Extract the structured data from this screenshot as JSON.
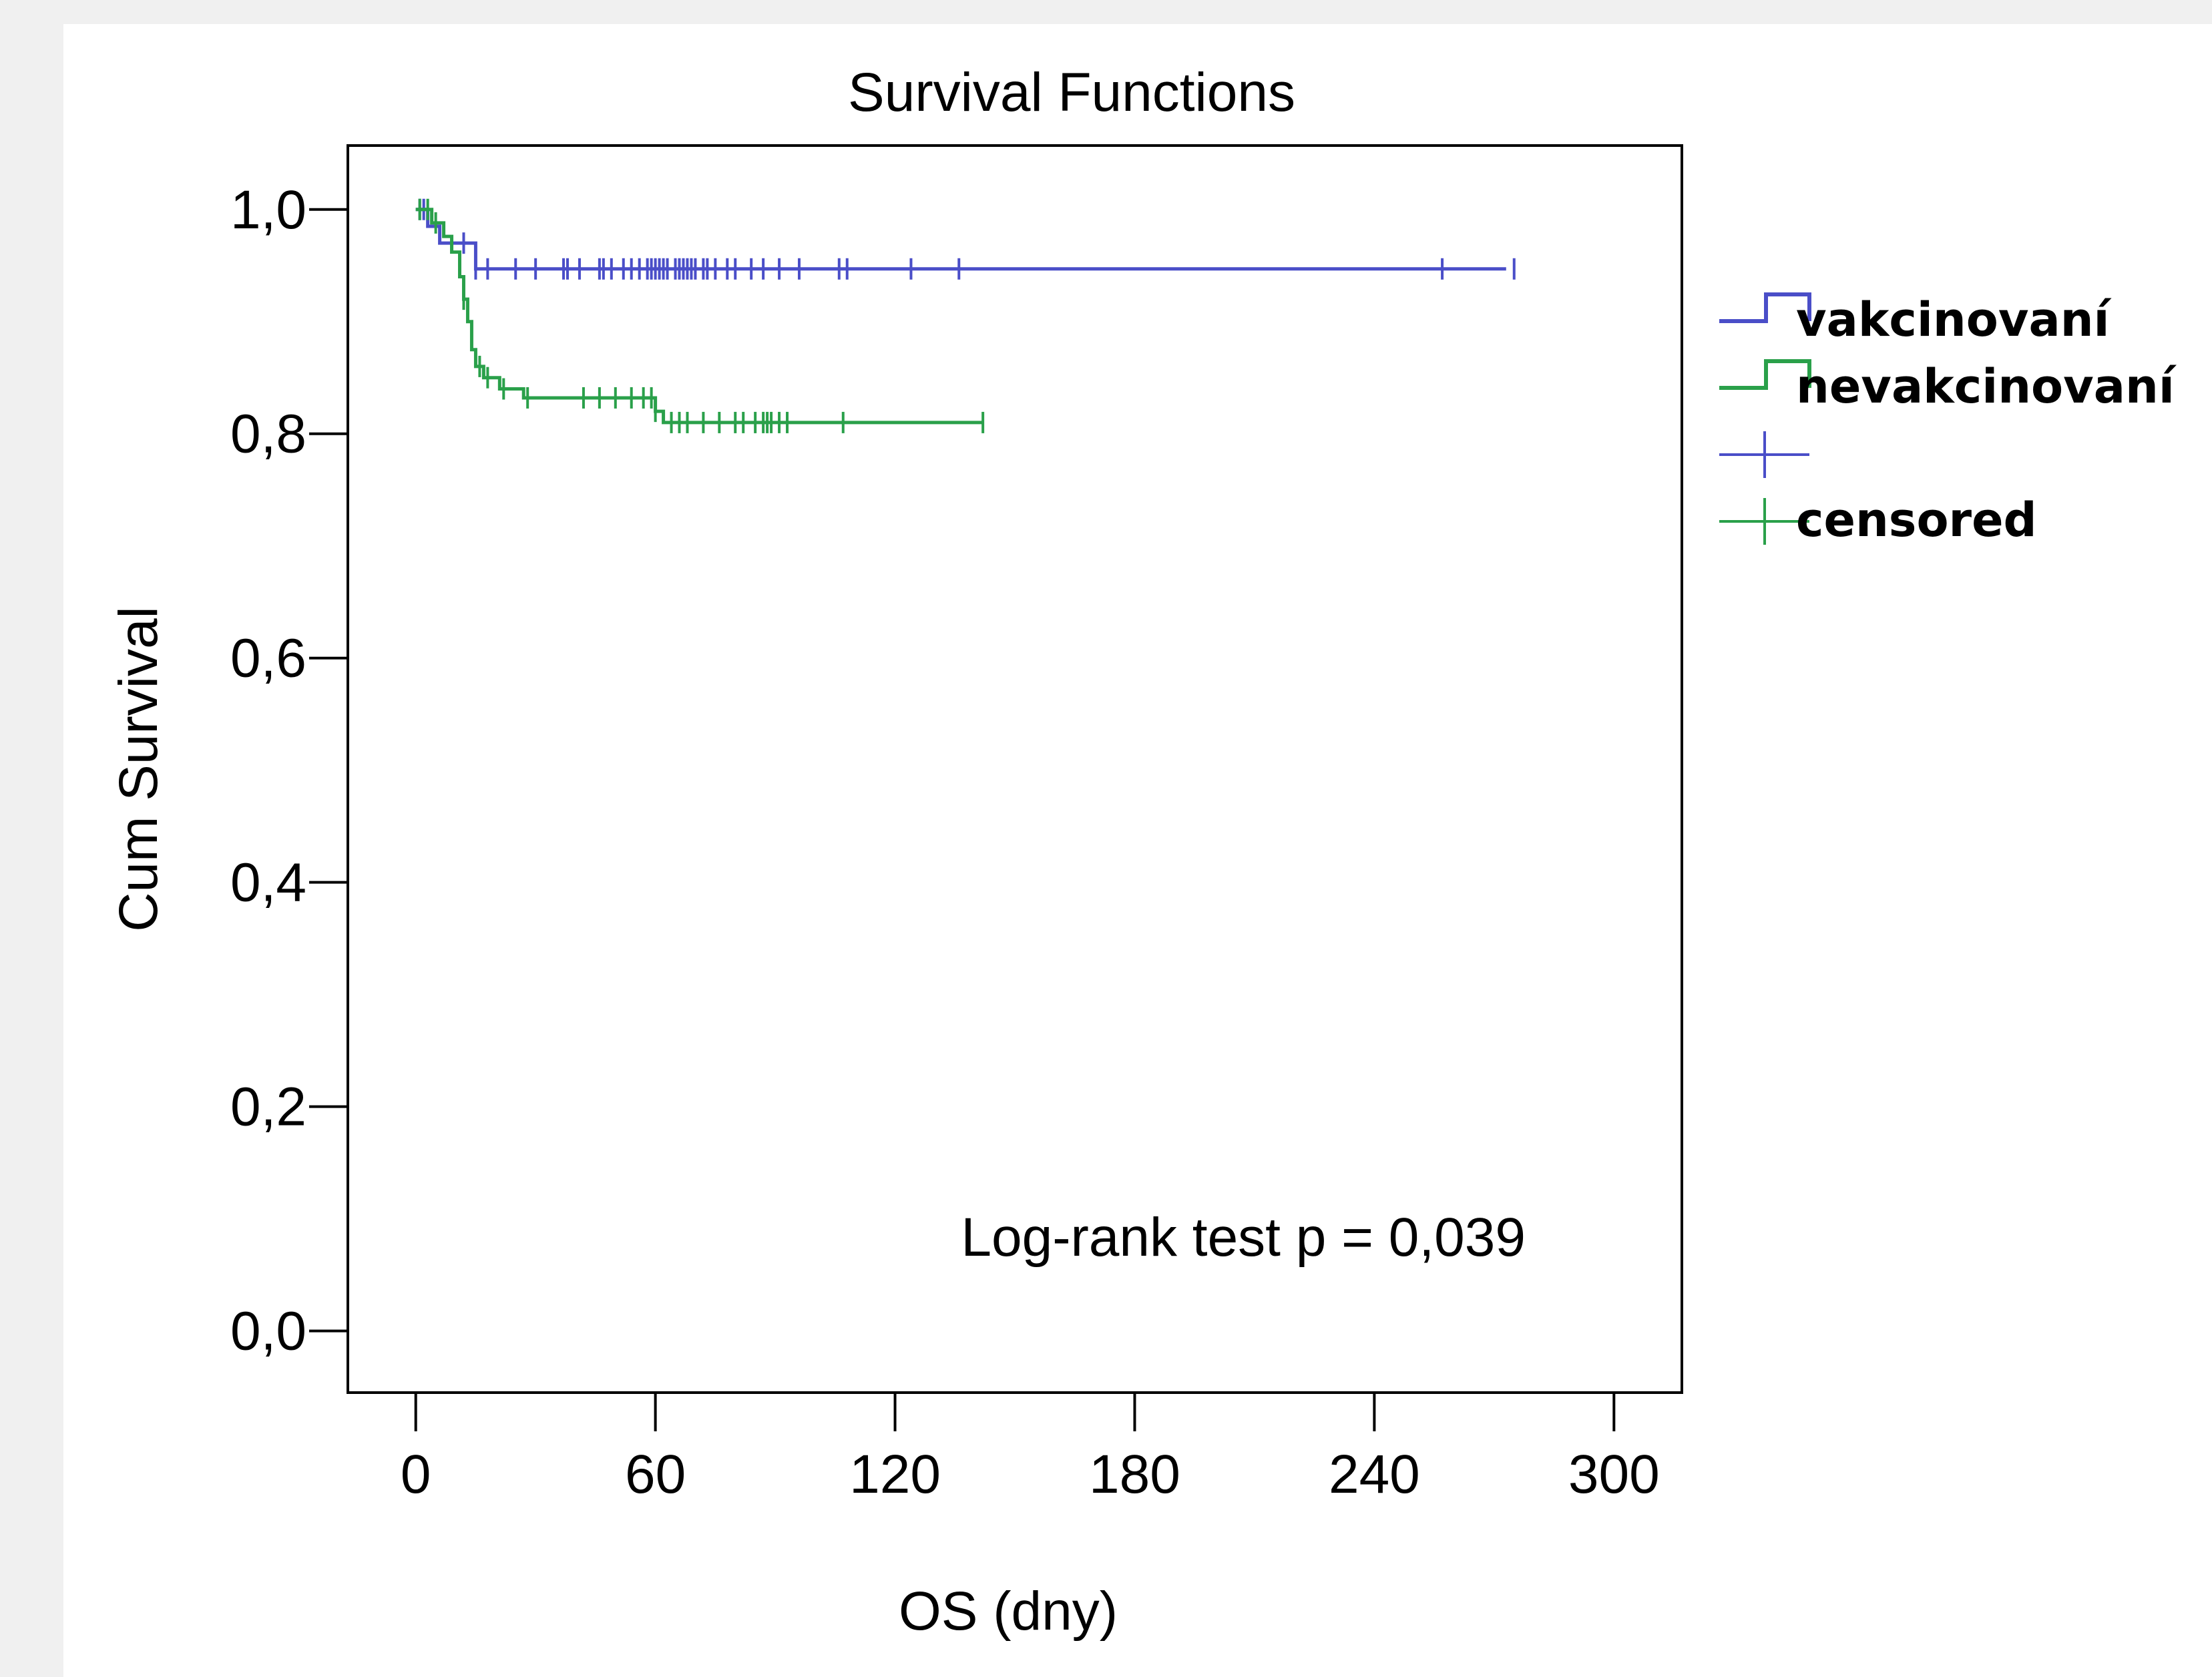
{
  "chart_data": {
    "type": "line",
    "subtype": "kaplan-meier step",
    "title": "Survival Functions",
    "xlabel": "OS (dny)",
    "ylabel": "Cum Survival",
    "xlim": [
      -17,
      317
    ],
    "ylim": [
      -0.055,
      1.057
    ],
    "x_ticks": [
      0,
      60,
      120,
      180,
      240,
      300
    ],
    "x_tick_labels": [
      "0",
      "60",
      "120",
      "180",
      "240",
      "300"
    ],
    "y_ticks": [
      0.0,
      0.2,
      0.4,
      0.6,
      0.8,
      1.0
    ],
    "y_tick_labels": [
      "0,0",
      "0,2",
      "0,4",
      "0,6",
      "0,8",
      "1,0"
    ],
    "grid": false,
    "legend_position": "right-top",
    "annotation": "Log-rank test  p = 0,039",
    "series": [
      {
        "name": "vakcinovaní",
        "color": "#4a4ec8",
        "steps": [
          [
            0,
            1.0
          ],
          [
            3,
            0.985
          ],
          [
            6,
            0.97
          ],
          [
            15,
            0.947
          ],
          [
            273,
            0.947
          ]
        ],
        "censored_x": [
          1,
          2,
          12,
          15,
          18,
          25,
          30,
          37,
          38,
          41,
          46,
          47,
          49,
          52,
          54,
          56,
          58,
          59,
          60,
          61,
          62,
          63,
          65,
          66,
          67,
          68,
          69,
          70,
          72,
          73,
          75,
          78,
          80,
          84,
          87,
          91,
          96,
          106,
          108,
          124,
          136,
          257,
          275
        ]
      },
      {
        "name": "nevakcinovaní",
        "color": "#2aa04a",
        "steps": [
          [
            0,
            1.0
          ],
          [
            4,
            0.988
          ],
          [
            7,
            0.976
          ],
          [
            9,
            0.962
          ],
          [
            11,
            0.94
          ],
          [
            12,
            0.92
          ],
          [
            13,
            0.9
          ],
          [
            14,
            0.875
          ],
          [
            15,
            0.86
          ],
          [
            17,
            0.85
          ],
          [
            21,
            0.84
          ],
          [
            27,
            0.832
          ],
          [
            60,
            0.82
          ],
          [
            62,
            0.81
          ],
          [
            142,
            0.81
          ]
        ],
        "censored_x": [
          1,
          3,
          5,
          12,
          16,
          18,
          22,
          28,
          42,
          46,
          50,
          54,
          57,
          59,
          60,
          64,
          66,
          68,
          72,
          76,
          80,
          82,
          85,
          87,
          88,
          89,
          91,
          93,
          107,
          142
        ]
      }
    ],
    "legend": [
      {
        "kind": "step",
        "label": "vakcinovaní",
        "color": "#4a4ec8"
      },
      {
        "kind": "step",
        "label": "nevakcinovaní",
        "color": "#2aa04a"
      },
      {
        "kind": "censor",
        "label": "",
        "color": "#4a4ec8"
      },
      {
        "kind": "censor",
        "label": "censored",
        "color": "#2aa04a"
      }
    ]
  }
}
